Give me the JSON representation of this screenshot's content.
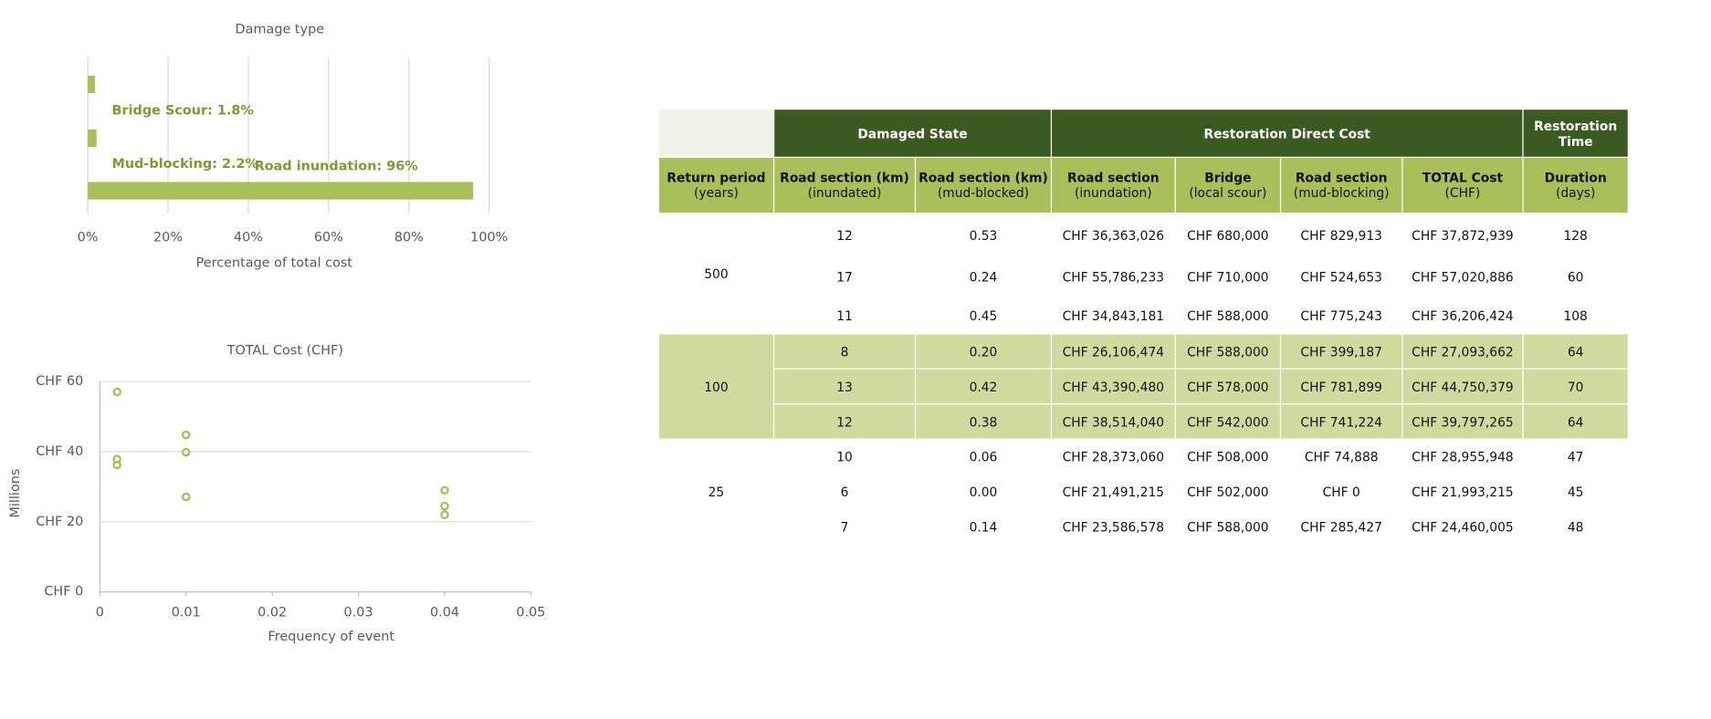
{
  "chart_data": [
    {
      "type": "bar",
      "orientation": "horizontal",
      "title": "Damage type",
      "values": [
        1.8,
        2.2,
        96
      ],
      "value_labels": [
        "Bridge Scour: 1.8%",
        "Mud-blocking: 2.2%",
        "Road inundation: 96%"
      ],
      "color": "#a9c05a",
      "label_color": "#7f9a2f",
      "xlim": [
        0,
        100
      ],
      "xticks": [
        {
          "value": 0,
          "label": "0%"
        },
        {
          "value": 20,
          "label": "20%"
        },
        {
          "value": 40,
          "label": "40%"
        },
        {
          "value": 60,
          "label": "60%"
        },
        {
          "value": 80,
          "label": "80%"
        },
        {
          "value": 100,
          "label": "100%"
        }
      ],
      "x_label": "Percentage of total cost",
      "grid": true
    },
    {
      "type": "scatter",
      "title": "TOTAL Cost (CHF)",
      "x": [
        0.002,
        0.002,
        0.002,
        0.01,
        0.01,
        0.01,
        0.04,
        0.04,
        0.04
      ],
      "values": [
        37.87,
        57.02,
        36.21,
        27.09,
        44.75,
        39.8,
        28.96,
        21.99,
        24.46
      ],
      "color": "#a9c05a",
      "xlim": [
        0,
        0.05
      ],
      "xticks": [
        0,
        0.01,
        0.02,
        0.03,
        0.04,
        0.05
      ],
      "ylim": [
        0,
        60
      ],
      "yticks": [
        {
          "value": 0,
          "label": "CHF 0"
        },
        {
          "value": 20,
          "label": "CHF 20"
        },
        {
          "value": 40,
          "label": "CHF 40"
        },
        {
          "value": 60,
          "label": "CHF 60"
        }
      ],
      "x_label": "Frequency of event",
      "y_label": "Millions",
      "grid": true
    }
  ],
  "table": {
    "header_groups": [
      {
        "label": "Damaged State",
        "span": 2
      },
      {
        "label": "Restoration Direct Cost",
        "span": 4
      },
      {
        "label": "Restoration Time",
        "span": 1
      }
    ],
    "columns": [
      {
        "title": "Return period",
        "unit": "(years)"
      },
      {
        "title": "Road section (km)",
        "unit": "(inundated)"
      },
      {
        "title": "Road section (km)",
        "unit": "(mud-blocked)"
      },
      {
        "title": "Road section",
        "unit": "(inundation)"
      },
      {
        "title": "Bridge",
        "unit": "(local scour)"
      },
      {
        "title": "Road section",
        "unit": "(mud-blocking)"
      },
      {
        "title": "TOTAL Cost",
        "unit": "(CHF)"
      },
      {
        "title": "Duration",
        "unit": "(days)"
      }
    ],
    "groups": [
      {
        "return_period": "500",
        "rows": [
          [
            "12",
            "0.53",
            "CHF 36,363,026",
            "CHF 680,000",
            "CHF 829,913",
            "CHF 37,872,939",
            "128"
          ],
          [
            "17",
            "0.24",
            "CHF 55,786,233",
            "CHF 710,000",
            "CHF 524,653",
            "CHF 57,020,886",
            "60"
          ],
          [
            "11",
            "0.45",
            "CHF 34,843,181",
            "CHF 588,000",
            "CHF 775,243",
            "CHF 36,206,424",
            "108"
          ]
        ]
      },
      {
        "return_period": "100",
        "rows": [
          [
            "8",
            "0.20",
            "CHF 26,106,474",
            "CHF 588,000",
            "CHF 399,187",
            "CHF 27,093,662",
            "64"
          ],
          [
            "13",
            "0.42",
            "CHF 43,390,480",
            "CHF 578,000",
            "CHF 781,899",
            "CHF 44,750,379",
            "70"
          ],
          [
            "12",
            "0.38",
            "CHF 38,514,040",
            "CHF 542,000",
            "CHF 741,224",
            "CHF 39,797,265",
            "64"
          ]
        ]
      },
      {
        "return_period": "25",
        "rows": [
          [
            "10",
            "0.06",
            "CHF 28,373,060",
            "CHF 508,000",
            "CHF 74,888",
            "CHF 28,955,948",
            "47"
          ],
          [
            "6",
            "0.00",
            "CHF 21,491,215",
            "CHF 502,000",
            "CHF 0",
            "CHF 21,993,215",
            "45"
          ],
          [
            "7",
            "0.14",
            "CHF 23,586,578",
            "CHF 588,000",
            "CHF 285,427",
            "CHF 24,460,005",
            "48"
          ]
        ]
      }
    ]
  }
}
